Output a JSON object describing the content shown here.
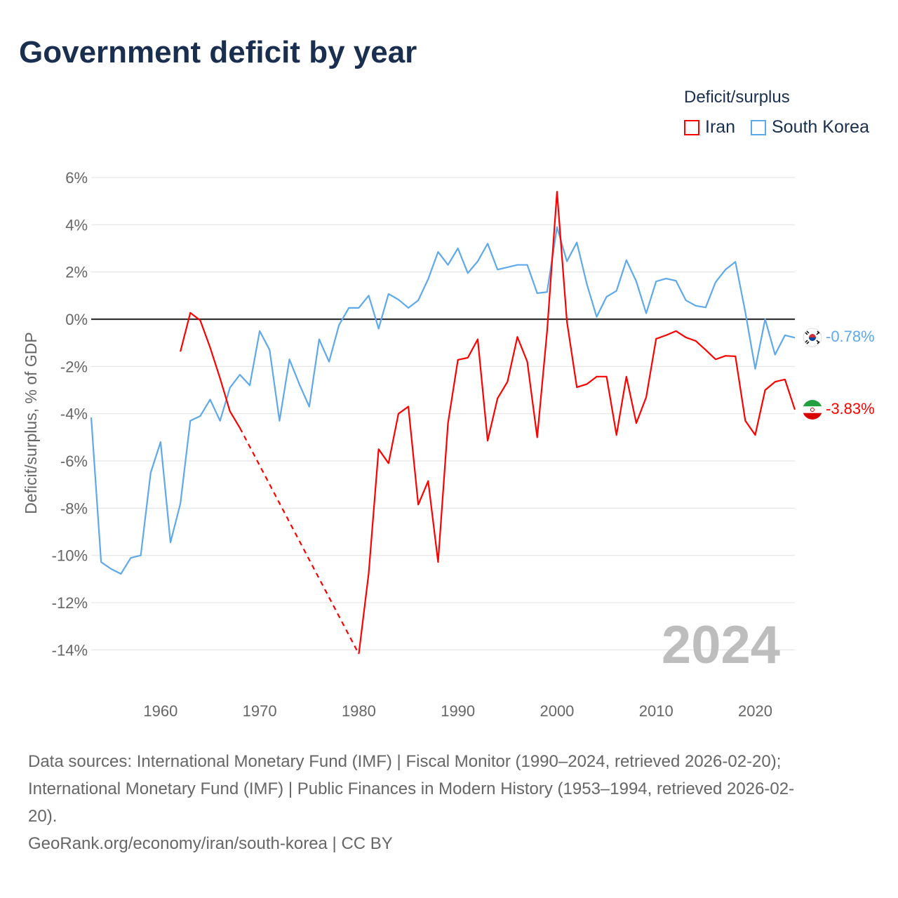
{
  "title": "Government deficit by year",
  "legend": {
    "title": "Deficit/surplus",
    "items": [
      {
        "name": "Iran",
        "color": "#ff0000"
      },
      {
        "name": "South Korea",
        "color": "#5ea8ec"
      }
    ]
  },
  "year_watermark": "2024",
  "end_labels": {
    "South Korea": "-0.78%",
    "Iran": "-3.83%"
  },
  "chart_data": {
    "type": "line",
    "title": "Government deficit by year",
    "xlabel": "",
    "ylabel": "Deficit/surplus, % of GDP",
    "xlim": [
      1953,
      2024
    ],
    "ylim": [
      -14,
      6
    ],
    "x_ticks": [
      1960,
      1970,
      1980,
      1990,
      2000,
      2010,
      2020
    ],
    "y_ticks": [
      -14,
      -12,
      -10,
      -8,
      -6,
      -4,
      -2,
      0,
      2,
      4,
      6
    ],
    "y_tick_labels": [
      "-14%",
      "-12%",
      "-10%",
      "-8%",
      "-6%",
      "-4%",
      "-2%",
      "0%",
      "2%",
      "4%",
      "6%"
    ],
    "grid": true,
    "legend_placement": "top-right",
    "series": [
      {
        "name": "South Korea",
        "color": "#5ea8ec",
        "start_year": 1953,
        "values": [
          -4.16,
          -10.28,
          -10.57,
          -10.78,
          -10.1,
          -10.0,
          -6.5,
          -5.2,
          -9.45,
          -7.8,
          -4.3,
          -4.1,
          -3.4,
          -4.3,
          -2.9,
          -2.35,
          -2.8,
          -0.5,
          -1.3,
          -4.3,
          -1.7,
          -2.75,
          -3.7,
          -0.85,
          -1.8,
          -0.25,
          0.48,
          0.48,
          1.0,
          -0.4,
          1.07,
          0.83,
          0.48,
          0.8,
          1.7,
          2.85,
          2.3,
          3.0,
          1.95,
          2.45,
          3.2,
          2.1,
          2.2,
          2.3,
          2.3,
          1.1,
          1.15,
          3.9,
          2.45,
          3.25,
          1.5,
          0.1,
          0.95,
          1.2,
          2.5,
          1.6,
          0.25,
          1.6,
          1.72,
          1.63,
          0.8,
          0.57,
          0.5,
          1.57,
          2.1,
          2.43,
          0.3,
          -2.1,
          0.0,
          -1.5,
          -0.68,
          -0.78
        ]
      },
      {
        "name": "Iran",
        "color": "#ff0000",
        "start_year": 1962,
        "values": [
          -1.37,
          0.27,
          -0.05,
          -1.2,
          -2.5,
          -3.9,
          -4.6,
          null,
          null,
          null,
          null,
          null,
          null,
          null,
          null,
          null,
          null,
          null,
          -14.17,
          -10.75,
          -5.5,
          -6.1,
          -4.0,
          -3.7,
          -7.85,
          -6.85,
          -10.28,
          -4.4,
          -1.72,
          -1.63,
          -0.85,
          -5.14,
          -3.35,
          -2.65,
          -0.75,
          -1.8,
          -5.0,
          -0.5,
          5.4,
          -0.1,
          -2.88,
          -2.75,
          -2.43,
          -2.43,
          -4.9,
          -2.43,
          -4.4,
          -3.3,
          -0.83,
          -0.68,
          -0.5,
          -0.77,
          -0.92,
          -1.3,
          -1.7,
          -1.55,
          -1.57,
          -4.3,
          -4.9,
          -3.0,
          -2.65,
          -2.55,
          -3.83
        ]
      }
    ]
  },
  "sources": [
    "Data sources: International Monetary Fund (IMF) | Fiscal Monitor (1990–2024, retrieved 2026-02-20);",
    "International Monetary Fund (IMF) | Public Finances in Modern History (1953–1994, retrieved 2026-02-",
    "20).",
    "GeoRank.org/economy/iran/south-korea | CC BY"
  ]
}
